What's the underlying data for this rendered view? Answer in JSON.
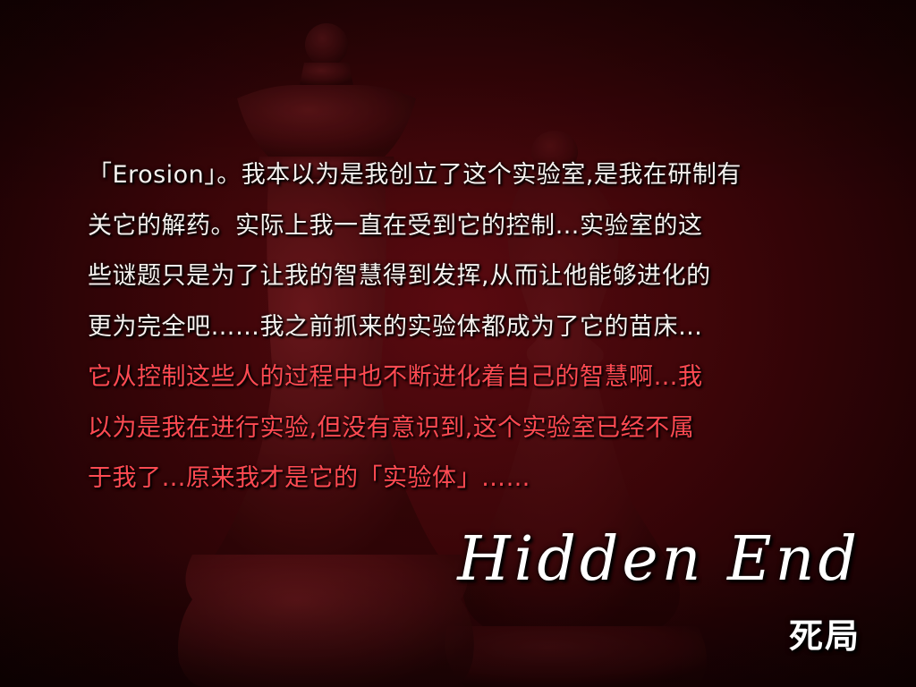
{
  "story": {
    "lines": [
      "「Erosion」。我本以为是我创立了这个实验室,是我在研制有",
      "关它的解药。实际上我一直在受到它的控制…实验室的这",
      "些谜题只是为了让我的智慧得到发挥,从而让他能够进化的",
      "更为完全吧……我之前抓来的实验体都成为了它的苗床…",
      "它从控制这些人的过程中也不断进化着自己的智慧啊…我",
      "以为是我在进行实验,但没有意识到,这个实验室已经不属",
      "于我了…原来我才是它的「实验体」……"
    ],
    "colors": {
      "primary": "#f5f1ee",
      "highlight": "#ff4a52"
    }
  },
  "ending": {
    "title": "Hidden End",
    "name": "死局"
  },
  "background": {
    "subject": "chess-pieces-silhouette",
    "tint": "#5a0a10"
  }
}
